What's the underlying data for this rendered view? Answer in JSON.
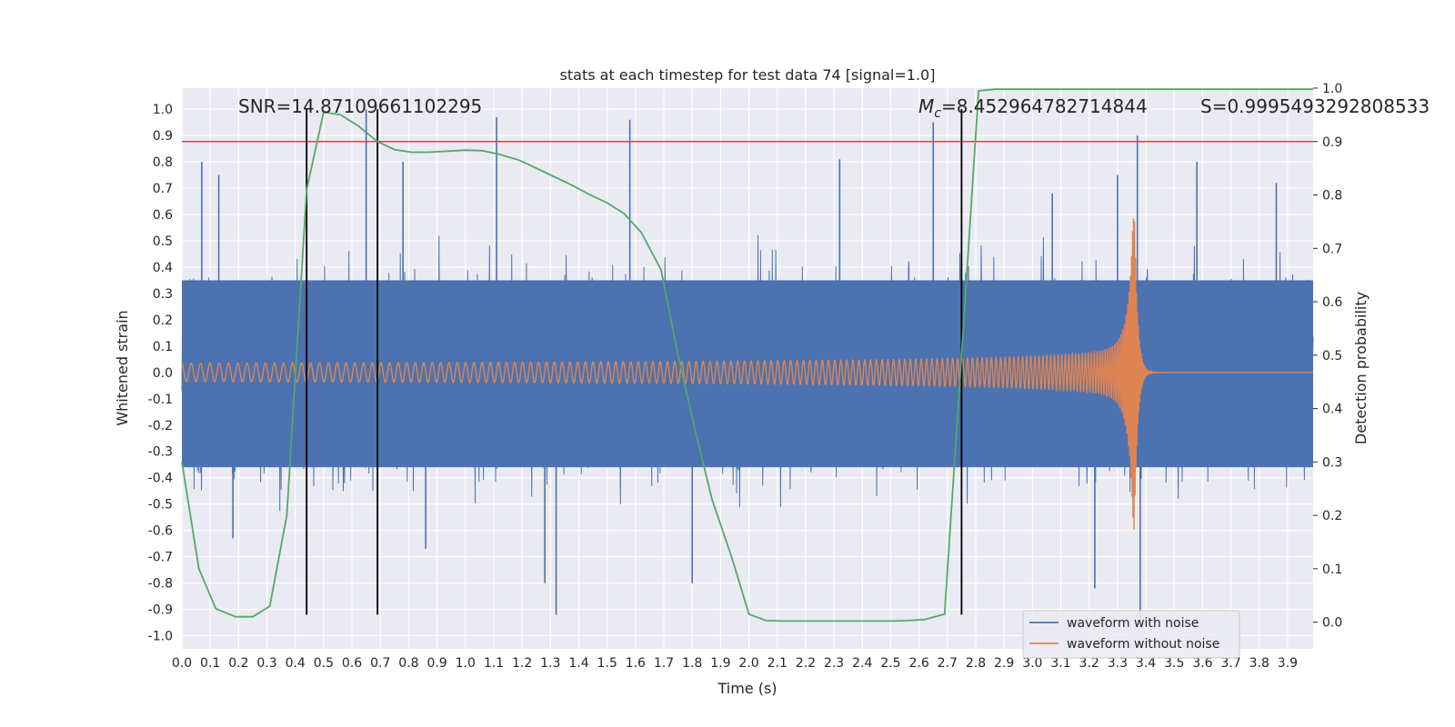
{
  "chart_data": {
    "type": "line",
    "title": "stats at each timestep for test data 74 [signal=1.0]",
    "xlabel": "Time (s)",
    "ylabel": "Whitened strain",
    "y2label": "Detection probability",
    "xlim": [
      0.0,
      3.99
    ],
    "ylim": [
      -1.05,
      1.08
    ],
    "y2lim": [
      -0.05,
      1.0
    ],
    "xticks": [
      "0.0",
      "0.1",
      "0.2",
      "0.3",
      "0.4",
      "0.5",
      "0.6",
      "0.7",
      "0.8",
      "0.9",
      "1.0",
      "1.1",
      "1.2",
      "1.3",
      "1.4",
      "1.5",
      "1.6",
      "1.7",
      "1.8",
      "1.9",
      "2.0",
      "2.1",
      "2.2",
      "2.3",
      "2.4",
      "2.5",
      "2.6",
      "2.7",
      "2.8",
      "2.9",
      "3.0",
      "3.1",
      "3.2",
      "3.3",
      "3.4",
      "3.5",
      "3.6",
      "3.7",
      "3.8",
      "3.9"
    ],
    "yticks": [
      "1.0",
      "0.9",
      "0.8",
      "0.7",
      "0.6",
      "0.5",
      "0.4",
      "0.3",
      "0.2",
      "0.1",
      "0.0",
      "-0.1",
      "-0.2",
      "-0.3",
      "-0.4",
      "-0.5",
      "-0.6",
      "-0.7",
      "-0.8",
      "-0.9",
      "-1.0"
    ],
    "y2ticks": [
      "1.0",
      "0.9",
      "0.8",
      "0.7",
      "0.6",
      "0.5",
      "0.4",
      "0.3",
      "0.2",
      "0.1",
      "0.0"
    ],
    "annotations": {
      "snr": "SNR=14.87109661102295",
      "mc_symbol": "M",
      "mc_subscript": "c",
      "mc_value": "=8.452964782714844",
      "s": "S=0.9995493292808533"
    },
    "threshold": {
      "y2": 0.9,
      "color": "#c44e52"
    },
    "vlines": {
      "x": [
        0.44,
        0.69,
        2.75
      ],
      "ymin": -0.92,
      "ymax": 1.0
    },
    "series": [
      {
        "name": "waveform with noise",
        "color": "#4c72b0",
        "envelope_upper": 0.35,
        "envelope_lower": -0.36,
        "max_spike": 1.0,
        "spikes": [
          {
            "x": 0.07,
            "y": 0.8
          },
          {
            "x": 0.13,
            "y": 0.75
          },
          {
            "x": 0.18,
            "y": -0.63
          },
          {
            "x": 0.65,
            "y": 1.0
          },
          {
            "x": 0.78,
            "y": 0.8
          },
          {
            "x": 0.86,
            "y": -0.67
          },
          {
            "x": 1.11,
            "y": 0.97
          },
          {
            "x": 1.28,
            "y": -0.8
          },
          {
            "x": 1.32,
            "y": -0.92
          },
          {
            "x": 1.58,
            "y": 0.96
          },
          {
            "x": 1.8,
            "y": -0.8
          },
          {
            "x": 2.32,
            "y": 0.81
          },
          {
            "x": 2.65,
            "y": 0.95
          },
          {
            "x": 3.07,
            "y": 0.68
          },
          {
            "x": 3.22,
            "y": -0.82
          },
          {
            "x": 3.3,
            "y": 0.75
          },
          {
            "x": 3.37,
            "y": 0.9
          },
          {
            "x": 3.38,
            "y": -0.93
          },
          {
            "x": 3.58,
            "y": 0.8
          },
          {
            "x": 3.86,
            "y": 0.72
          }
        ]
      },
      {
        "name": "waveform without noise",
        "color": "#dd8452",
        "chirp": {
          "t_merger": 3.36,
          "start_amp": 0.035,
          "peak_amp": 0.6,
          "start_freq_hz": 30,
          "end_freq_hz": 300
        }
      },
      {
        "name": "detection probability",
        "color": "#55a868",
        "axis": "right",
        "x": [
          0.0,
          0.06,
          0.12,
          0.19,
          0.25,
          0.31,
          0.37,
          0.44,
          0.5,
          0.56,
          0.62,
          0.69,
          0.75,
          0.81,
          0.87,
          0.94,
          1.0,
          1.06,
          1.12,
          1.19,
          1.25,
          1.31,
          1.37,
          1.44,
          1.5,
          1.56,
          1.62,
          1.69,
          1.75,
          1.81,
          1.87,
          1.94,
          2.0,
          2.06,
          2.12,
          2.19,
          2.25,
          2.31,
          2.37,
          2.44,
          2.5,
          2.56,
          2.62,
          2.69,
          2.75,
          2.81,
          2.87,
          2.94,
          3.0,
          3.5,
          3.99
        ],
        "values": [
          0.3,
          0.1,
          0.025,
          0.01,
          0.01,
          0.03,
          0.2,
          0.81,
          0.955,
          0.95,
          0.93,
          0.9,
          0.885,
          0.88,
          0.88,
          0.882,
          0.884,
          0.883,
          0.876,
          0.865,
          0.85,
          0.835,
          0.82,
          0.8,
          0.785,
          0.765,
          0.73,
          0.66,
          0.5,
          0.36,
          0.23,
          0.12,
          0.015,
          0.003,
          0.002,
          0.002,
          0.002,
          0.002,
          0.002,
          0.002,
          0.002,
          0.003,
          0.005,
          0.015,
          0.5,
          0.995,
          0.998,
          0.998,
          0.998,
          0.998,
          0.998
        ]
      }
    ],
    "legend": {
      "position": "lower-right",
      "entries": [
        "waveform with noise",
        "waveform without noise"
      ]
    }
  }
}
